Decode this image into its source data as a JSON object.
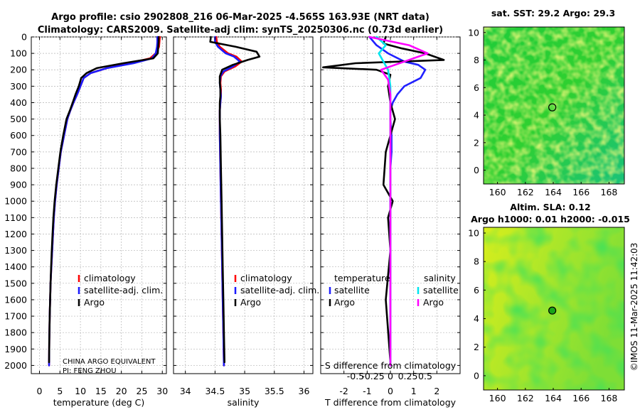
{
  "header": {
    "line1": "Argo profile: csio 2902808_216 06-Mar-2025 -4.565S 163.93E (NRT data)",
    "line2": "Climatology: CARS2009. Satellite-adj clim: synTS_20250306.nc (0.73d earlier)"
  },
  "credit": "©IMOS 11-Mar-2025 11:42:03",
  "colors": {
    "climatology": "#ff0000",
    "satellite_adj": "#1a1aff",
    "argo": "#000000",
    "t_satellite": "#2020ff",
    "s_satellite": "#00e5ee",
    "s_argo": "#ff00ff",
    "grid": "#b4b4b4"
  },
  "chart_data": [
    {
      "id": "temperature",
      "type": "line",
      "xlabel": "temperature (deg C)",
      "ylabel": "",
      "xlim": [
        -2,
        31
      ],
      "ylim": [
        2050,
        0
      ],
      "xticks": [
        0,
        5,
        10,
        15,
        20,
        25,
        30
      ],
      "yticks": [
        0,
        100,
        200,
        300,
        400,
        500,
        600,
        700,
        800,
        900,
        1000,
        1100,
        1200,
        1300,
        1400,
        1500,
        1600,
        1700,
        1800,
        1900,
        2000
      ],
      "grid": true,
      "legend": [
        "climatology",
        "satellite-adj. clim.",
        "Argo"
      ],
      "note_lines": [
        "CHINA ARGO EQUIVALENT",
        "PI: FENG ZHOU"
      ],
      "series": [
        {
          "name": "climatology",
          "color": "#ff0000",
          "x": [
            29.4,
            29.3,
            29.2,
            28.4,
            27.0,
            22.0,
            16.5,
            12.5,
            10.8,
            10.0,
            9.2,
            8.3,
            7.5,
            6.8,
            6.0,
            5.2,
            4.7,
            4.2,
            3.8,
            3.5,
            3.3,
            3.1,
            2.9,
            2.7,
            2.6,
            2.5,
            2.4,
            2.35
          ],
          "depth": [
            0,
            30,
            60,
            100,
            130,
            160,
            190,
            220,
            250,
            300,
            350,
            400,
            450,
            500,
            600,
            700,
            800,
            900,
            1000,
            1100,
            1200,
            1300,
            1400,
            1500,
            1600,
            1700,
            1850,
            2000
          ]
        },
        {
          "name": "satellite-adj. clim.",
          "color": "#1a1aff",
          "x": [
            28.8,
            28.8,
            28.7,
            28.4,
            27.5,
            23.0,
            16.5,
            12.5,
            10.8,
            10.0,
            9.2,
            8.3,
            7.5,
            6.8,
            6.0,
            5.2,
            4.7,
            4.2,
            3.8,
            3.5,
            3.3,
            3.1,
            2.9,
            2.7,
            2.6,
            2.5,
            2.4,
            2.35
          ],
          "depth": [
            0,
            30,
            60,
            100,
            130,
            160,
            190,
            220,
            250,
            300,
            350,
            400,
            450,
            500,
            600,
            700,
            800,
            900,
            1000,
            1100,
            1200,
            1300,
            1400,
            1500,
            1600,
            1700,
            1850,
            2000
          ]
        },
        {
          "name": "Argo",
          "color": "#000000",
          "x": [
            29.1,
            29.1,
            29.0,
            28.9,
            27.8,
            20.5,
            14.0,
            11.5,
            10.2,
            9.6,
            8.8,
            8.1,
            7.4,
            6.6,
            5.8,
            5.1,
            4.6,
            4.1,
            3.7,
            3.4,
            3.2,
            3.0,
            2.85,
            2.7,
            2.6,
            2.5,
            2.4,
            2.35
          ],
          "depth": [
            0,
            30,
            60,
            100,
            130,
            160,
            190,
            220,
            250,
            300,
            350,
            400,
            450,
            500,
            600,
            700,
            800,
            900,
            1000,
            1100,
            1200,
            1300,
            1400,
            1500,
            1600,
            1700,
            1850,
            1980
          ]
        }
      ]
    },
    {
      "id": "salinity",
      "type": "line",
      "xlabel": "salinity",
      "ylabel": "",
      "xlim": [
        33.8,
        36.15
      ],
      "ylim": [
        2050,
        0
      ],
      "xticks": [
        34,
        34.5,
        35,
        35.5,
        36
      ],
      "xtick_labels": [
        "34",
        "34.5",
        "35",
        "35.5",
        "36"
      ],
      "grid": true,
      "legend": [
        "climatology",
        "satellite-adj. clim.",
        "Argo"
      ],
      "series": [
        {
          "name": "climatology",
          "color": "#ff0000",
          "x": [
            34.52,
            34.53,
            34.58,
            34.72,
            34.86,
            34.95,
            34.84,
            34.66,
            34.6,
            34.59,
            34.6,
            34.6,
            34.59,
            34.58,
            34.58,
            34.58,
            34.59,
            34.6,
            34.61,
            34.62,
            34.63,
            34.64,
            34.65
          ],
          "depth": [
            0,
            30,
            60,
            100,
            120,
            150,
            180,
            210,
            240,
            280,
            320,
            360,
            400,
            450,
            500,
            600,
            800,
            1000,
            1200,
            1400,
            1600,
            1800,
            2000
          ]
        },
        {
          "name": "satellite-adj. clim.",
          "color": "#1a1aff",
          "x": [
            34.5,
            34.5,
            34.55,
            34.68,
            34.82,
            34.92,
            34.8,
            34.64,
            34.59,
            34.58,
            34.59,
            34.6,
            34.59,
            34.58,
            34.58,
            34.58,
            34.59,
            34.6,
            34.61,
            34.62,
            34.63,
            34.64,
            34.65
          ],
          "depth": [
            0,
            30,
            60,
            100,
            120,
            150,
            180,
            210,
            240,
            280,
            320,
            360,
            400,
            450,
            500,
            600,
            800,
            1000,
            1200,
            1400,
            1600,
            1800,
            2000
          ]
        },
        {
          "name": "Argo",
          "color": "#000000",
          "x": [
            34.43,
            34.42,
            34.85,
            35.2,
            35.25,
            35.05,
            34.8,
            34.62,
            34.58,
            34.58,
            34.59,
            34.59,
            34.58,
            34.58,
            34.58,
            34.59,
            34.6,
            34.61,
            34.62,
            34.63,
            34.64,
            34.65,
            34.66
          ],
          "depth": [
            0,
            30,
            60,
            90,
            120,
            140,
            170,
            200,
            240,
            280,
            320,
            360,
            400,
            450,
            500,
            600,
            800,
            1000,
            1200,
            1400,
            1600,
            1800,
            1980
          ]
        }
      ]
    },
    {
      "id": "differences",
      "type": "line",
      "xlabel": "T difference from climatology",
      "x2label": "S difference from climatology",
      "ylabel": "",
      "xlim": [
        -3,
        3
      ],
      "ylim": [
        2050,
        0
      ],
      "xticks": [
        -2,
        -1,
        0,
        1,
        2
      ],
      "xtick_labels": [
        "-2",
        "-1",
        "0",
        "1",
        "2"
      ],
      "x2ticks": [
        -1.5,
        -0.75,
        0,
        0.75,
        1.5
      ],
      "x2tick_labels": [
        "-0.5",
        "-0.25",
        "0",
        "0.25",
        "0.5"
      ],
      "grid": true,
      "legend_left_title": "temperature",
      "legend_right_title": "salinity",
      "legend_left": [
        "satellite",
        "Argo"
      ],
      "legend_right": [
        "satellite",
        "Argo"
      ],
      "series": [
        {
          "name": "T satellite",
          "color": "#2020ff",
          "x": [
            -0.9,
            -0.6,
            -0.1,
            0.6,
            1.2,
            1.5,
            1.3,
            0.6,
            0.3,
            0.1,
            0.0,
            0.0,
            0.05,
            0.05,
            0.0,
            0.0,
            0.0,
            0.0,
            0.0
          ],
          "depth": [
            0,
            50,
            100,
            150,
            170,
            200,
            250,
            300,
            350,
            400,
            450,
            500,
            600,
            700,
            800,
            1000,
            1400,
            1800,
            2000
          ]
        },
        {
          "name": "T Argo",
          "color": "#000000",
          "x": [
            -0.2,
            -0.3,
            0.5,
            1.5,
            2.3,
            -1.5,
            -2.9,
            -0.6,
            0.0,
            -0.1,
            0.0,
            0.2,
            0.0,
            -0.2,
            -0.3,
            0.1,
            -0.1,
            0.0,
            -0.2,
            0.0
          ],
          "depth": [
            0,
            40,
            70,
            100,
            140,
            160,
            185,
            200,
            230,
            300,
            400,
            500,
            600,
            700,
            900,
            1000,
            1100,
            1300,
            1600,
            1980
          ]
        },
        {
          "name": "S satellite",
          "color": "#00e5ee",
          "x": [
            -0.6,
            -0.2,
            -0.5,
            -0.3,
            -0.1,
            0.0,
            0.0,
            0.0,
            0.0,
            0.0,
            0.0
          ],
          "depth": [
            0,
            50,
            100,
            150,
            200,
            300,
            400,
            600,
            1000,
            1500,
            2000
          ]
        },
        {
          "name": "S Argo",
          "color": "#ff00ff",
          "x": [
            -0.9,
            0.8,
            1.6,
            0.6,
            -0.4,
            -0.1,
            0.0,
            0.0,
            0.0,
            0.0,
            0.0
          ],
          "depth": [
            0,
            50,
            100,
            150,
            200,
            260,
            350,
            500,
            1000,
            1500,
            2000
          ]
        }
      ]
    },
    {
      "id": "sst_map",
      "type": "heatmap",
      "title": "sat. SST: 29.2 Argo: 29.3",
      "xlim": [
        159,
        169.1
      ],
      "ylim": [
        -1,
        10.4
      ],
      "xticks": [
        160,
        162,
        164,
        166,
        168
      ],
      "yticks": [
        0,
        2,
        4,
        6,
        8,
        10
      ],
      "marker": {
        "lon": 163.93,
        "lat": 4.565
      }
    },
    {
      "id": "sla_map",
      "type": "heatmap",
      "title_lines": [
        "Altim. SLA: 0.12",
        "Argo h1000: 0.01 h2000: -0.015"
      ],
      "xlim": [
        159,
        169.1
      ],
      "ylim": [
        -1,
        10.4
      ],
      "xticks": [
        160,
        162,
        164,
        166,
        168
      ],
      "yticks": [
        0,
        2,
        4,
        6,
        8,
        10
      ],
      "marker": {
        "lon": 163.93,
        "lat": 4.565
      }
    }
  ]
}
